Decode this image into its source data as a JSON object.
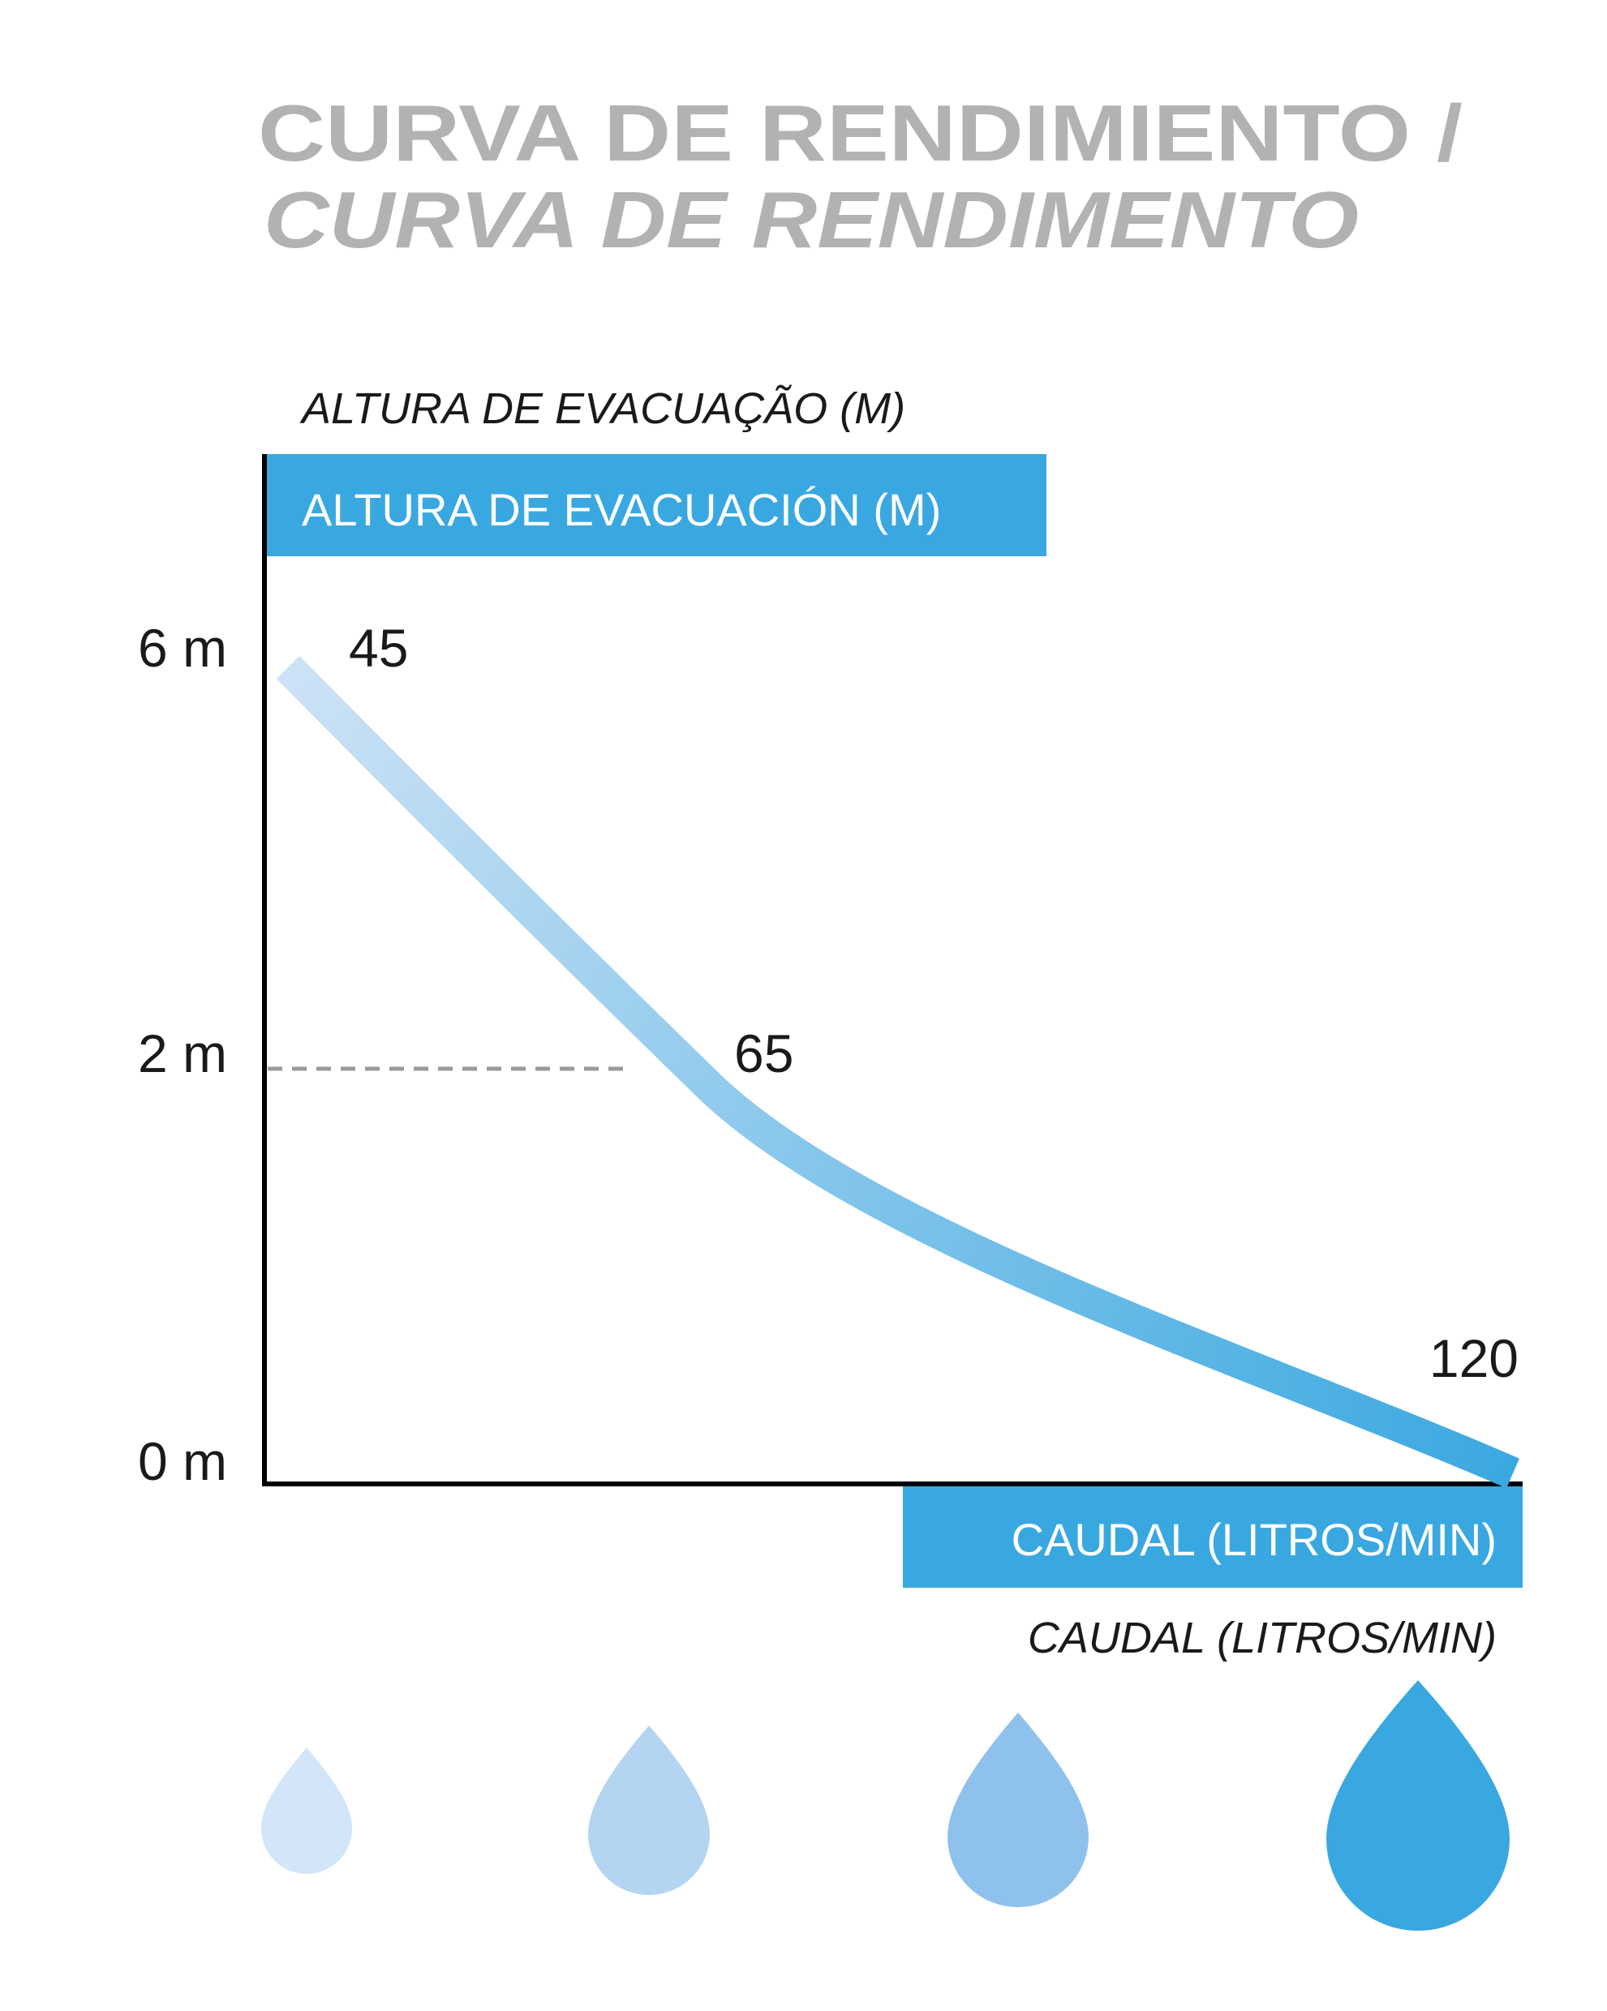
{
  "title": {
    "line1": "CURVA DE RENDIMIENTO /",
    "line2": "CURVA DE RENDIMENTO"
  },
  "colors": {
    "accent": "#3aa8e0",
    "title_gray": "#b2b2b2",
    "curve_light": "#cfe3f6",
    "curve_dark": "#3aa8e0",
    "drop_1": "#d3e5f8",
    "drop_2": "#b3d5f2",
    "drop_3": "#8ec2ec",
    "drop_4": "#3aa8e0"
  },
  "chart_data": {
    "type": "line",
    "y_axis": {
      "label_pt": "ALTURA DE EVACUAÇÃO (M)",
      "label_es": "ALTURA DE EVACUACIÓN (M)",
      "ticks": [
        "6 m",
        "2 m",
        "0 m"
      ],
      "tick_values": [
        6,
        2,
        0
      ],
      "ylim": [
        0,
        6
      ]
    },
    "x_axis": {
      "label_es": "CAUDAL (LITROS/MIN)",
      "label_pt": "CAUDAL (LITROS/MIN)"
    },
    "points": [
      {
        "flow": 45,
        "head": 6,
        "label": "45"
      },
      {
        "flow": 65,
        "head": 2,
        "label": "65"
      },
      {
        "flow": 120,
        "head": 0,
        "label": "120"
      }
    ],
    "reference_line": {
      "head": 2,
      "style": "dashed"
    },
    "grid": false,
    "legend": "none",
    "decoration": [
      "drop-icon",
      "drop-icon",
      "drop-icon",
      "drop-icon"
    ]
  }
}
